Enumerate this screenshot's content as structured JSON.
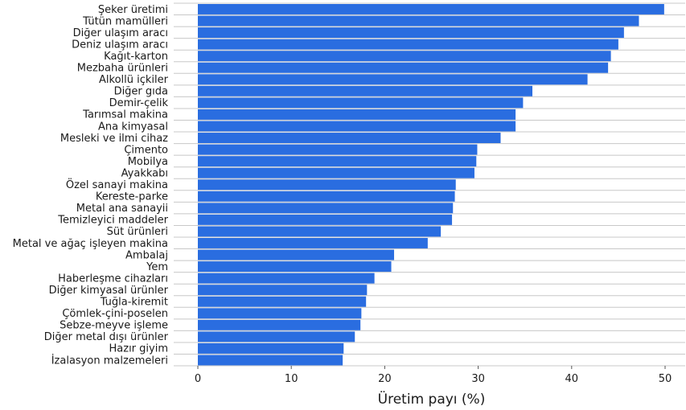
{
  "chart_data": {
    "type": "bar",
    "orientation": "horizontal",
    "categories": [
      "Şeker üretimi",
      "Tütün mamülleri",
      "Diğer ulaşım aracı",
      "Deniz ulaşım aracı",
      "Kağıt-karton",
      "Mezbaha ürünleri",
      "Alkollü içkiler",
      "Diğer gıda",
      "Demir-çelik",
      "Tarımsal makina",
      "Ana kimyasal",
      "Mesleki ve ilmi cihaz",
      "Çimento",
      "Mobilya",
      "Ayakkabı",
      "Özel sanayi makina",
      "Kereste-parke",
      "Metal ana sanayii",
      "Temizleyici maddeler",
      "Süt ürünleri",
      "Metal ve ağaç işleyen makina",
      "Ambalaj",
      "Yem",
      "Haberleşme cihazları",
      "Diğer kimyasal ürünler",
      "Tuğla-kiremit",
      "Çömlek-çini-poselen",
      "Sebze-meyve işleme",
      "Diğer metal dışı ürünler",
      "Hazır giyim",
      "İzalasyon malzemeleri"
    ],
    "values": [
      49.9,
      47.2,
      45.6,
      45.0,
      44.2,
      43.9,
      41.7,
      35.8,
      34.8,
      34.0,
      34.0,
      32.4,
      29.9,
      29.8,
      29.6,
      27.6,
      27.5,
      27.3,
      27.2,
      26.0,
      24.6,
      21.0,
      20.7,
      18.9,
      18.1,
      18.0,
      17.5,
      17.4,
      16.8,
      15.6,
      15.5
    ],
    "xlabel": "Üretim payı (%)",
    "ylabel": "",
    "xlim": [
      0,
      52
    ],
    "xticks": [
      0,
      10,
      20,
      30,
      40,
      50
    ],
    "xtick_labels": [
      "0",
      "10",
      "20",
      "30",
      "40",
      "50"
    ],
    "grid": "horizontal",
    "legend": "none",
    "colors": {
      "bar": "#2a6de0",
      "grid": "#c8c8c8",
      "text": "#1a1a1a"
    }
  }
}
